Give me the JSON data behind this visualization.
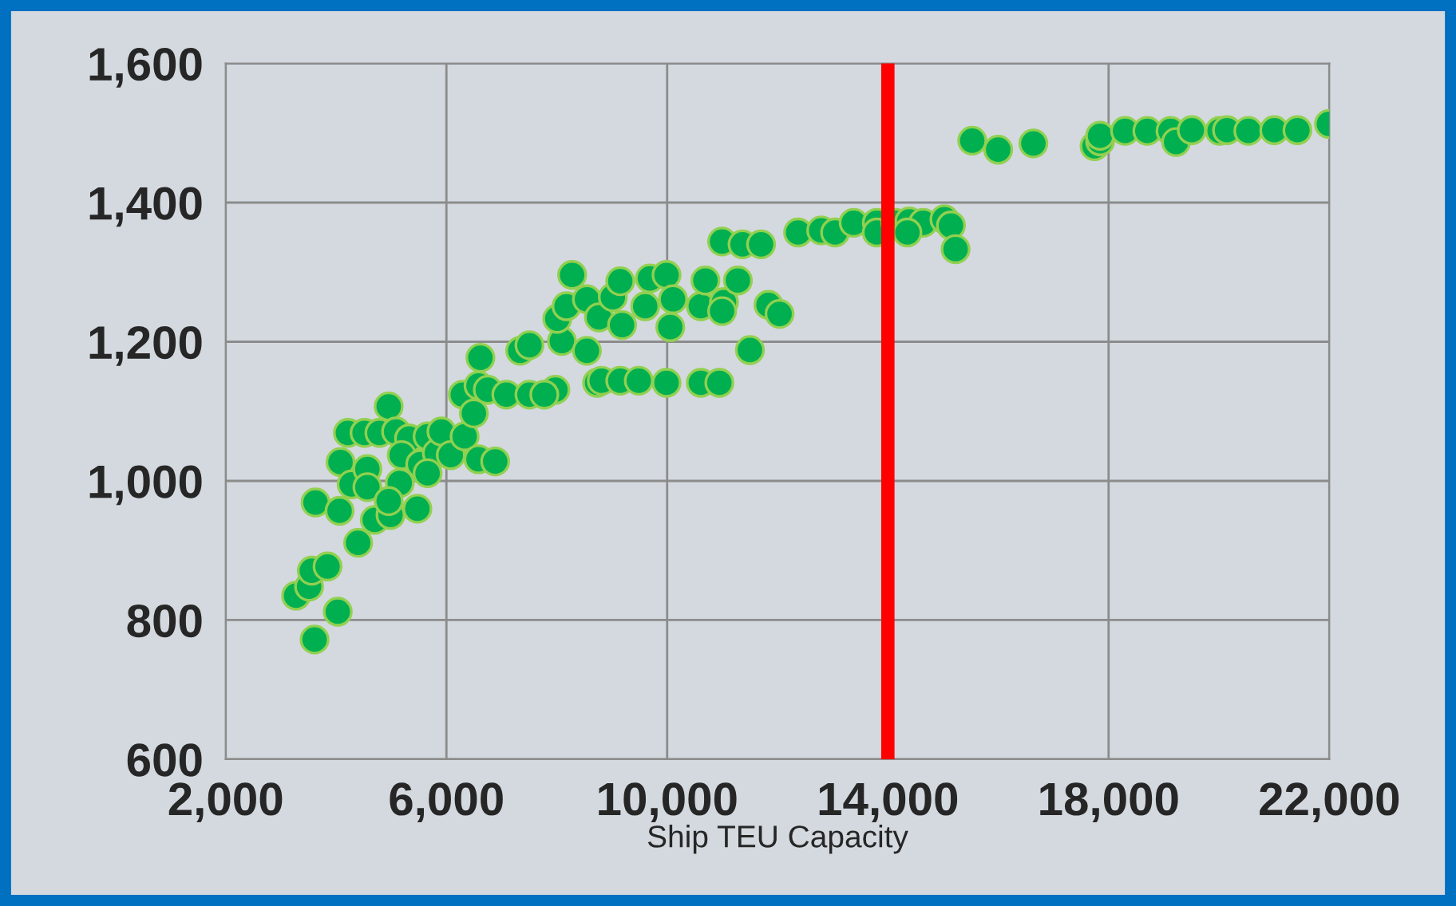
{
  "chart_data": {
    "type": "scatter",
    "xlabel": "Ship TEU Capacity",
    "x": [
      3611,
      4031,
      3276,
      3511,
      3561,
      3846,
      3628,
      4400,
      4064,
      4081,
      4215,
      4517,
      4786,
      4954,
      4282,
      4568,
      4568,
      4702,
      4987,
      5474,
      5088,
      5323,
      5659,
      5190,
      5525,
      5827,
      5910,
      6079,
      6330,
      6297,
      6582,
      6616,
      6582,
      6884,
      6498,
      6750,
      7086,
      7505,
      7337,
      7505,
      7975,
      7774,
      8093,
      8009,
      8177,
      8278,
      8546,
      8546,
      8765,
      9016,
      8731,
      8815,
      9150,
      9486,
      9150,
      9184,
      9603,
      9687,
      9989,
      10107,
      10057,
      9989,
      10610,
      10946,
      10610,
      10694,
      11030,
      11282,
      10996,
      10996,
      11366,
      11702,
      11500,
      11836,
      12037,
      12373,
      12792,
      13044,
      13380,
      13800,
      13800,
      14136,
      14388,
      14640,
      14354,
      15025,
      15143,
      15227,
      15529,
      15999,
      16637,
      17745,
      17846,
      17846,
      18299,
      18702,
      19122,
      19223,
      19508,
      20012,
      20146,
      20532,
      21002,
      21422,
      21993,
      5155,
      4954,
      5659
    ],
    "series": [
      {
        "color": "#00b050",
        "values": [
          772,
          812,
          835,
          848,
          871,
          877,
          969,
          911,
          957,
          1027,
          1069,
          1069,
          1069,
          1107,
          995,
          1017,
          991,
          944,
          951,
          960,
          1071,
          1061,
          1064,
          1037,
          1024,
          1040,
          1071,
          1037,
          1064,
          1124,
          1137,
          1177,
          1031,
          1028,
          1097,
          1131,
          1124,
          1124,
          1187,
          1195,
          1131,
          1124,
          1201,
          1233,
          1251,
          1296,
          1187,
          1261,
          1235,
          1264,
          1141,
          1144,
          1144,
          1144,
          1287,
          1224,
          1251,
          1291,
          1296,
          1261,
          1221,
          1141,
          1141,
          1141,
          1251,
          1288,
          1257,
          1288,
          1244,
          1344,
          1340,
          1340,
          1188,
          1253,
          1240,
          1357,
          1360,
          1357,
          1371,
          1371,
          1357,
          1371,
          1373,
          1371,
          1357,
          1376,
          1367,
          1333,
          1489,
          1476,
          1485,
          1481,
          1488,
          1496,
          1503,
          1503,
          1503,
          1487,
          1504,
          1503,
          1504,
          1503,
          1504,
          1504,
          1513,
          997,
          971,
          1011
        ]
      }
    ],
    "marker": "circle",
    "xlim": [
      2000,
      22000
    ],
    "xticks": [
      {
        "value": 2000,
        "label": "2,000"
      },
      {
        "value": 6000,
        "label": "6,000"
      },
      {
        "value": 10000,
        "label": "10,000"
      },
      {
        "value": 14000,
        "label": "14,000"
      },
      {
        "value": 18000,
        "label": "18,000"
      },
      {
        "value": 22000,
        "label": "22,000"
      }
    ],
    "ylim": [
      600,
      1600
    ],
    "yticks": [
      {
        "value": 600,
        "label": "600"
      },
      {
        "value": 800,
        "label": "800"
      },
      {
        "value": 1000,
        "label": "1,000"
      },
      {
        "value": 1200,
        "label": "1,200"
      },
      {
        "value": 1400,
        "label": "1,400"
      },
      {
        "value": 1600,
        "label": "1,600"
      }
    ],
    "grid": true,
    "ref_lines": [
      {
        "axis": "x",
        "value": 14000,
        "color": "#ff0000"
      }
    ]
  }
}
